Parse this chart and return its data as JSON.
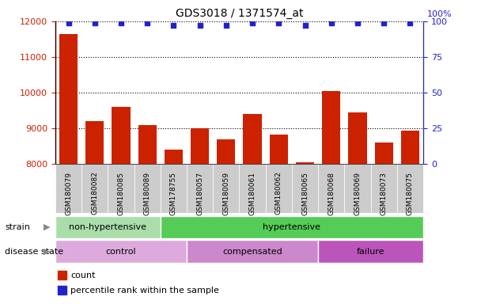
{
  "title": "GDS3018 / 1371574_at",
  "samples": [
    "GSM180079",
    "GSM180082",
    "GSM180085",
    "GSM180089",
    "GSM178755",
    "GSM180057",
    "GSM180059",
    "GSM180061",
    "GSM180062",
    "GSM180065",
    "GSM180068",
    "GSM180069",
    "GSM180073",
    "GSM180075"
  ],
  "counts": [
    11650,
    9200,
    9600,
    9100,
    8400,
    9000,
    8700,
    9400,
    8830,
    8050,
    10050,
    9450,
    8600,
    8930
  ],
  "percentile_ranks": [
    99,
    99,
    99,
    99,
    97,
    97,
    97,
    99,
    99,
    97,
    99,
    99,
    99,
    99
  ],
  "ylim_left": [
    8000,
    12000
  ],
  "ylim_right": [
    0,
    100
  ],
  "yticks_left": [
    8000,
    9000,
    10000,
    11000,
    12000
  ],
  "yticks_right": [
    0,
    25,
    50,
    75,
    100
  ],
  "bar_color": "#cc2200",
  "dot_color": "#2222cc",
  "strain_groups": [
    {
      "label": "non-hypertensive",
      "start": 0,
      "end": 4,
      "color": "#aaddaa"
    },
    {
      "label": "hypertensive",
      "start": 4,
      "end": 14,
      "color": "#55cc55"
    }
  ],
  "disease_groups": [
    {
      "label": "control",
      "start": 0,
      "end": 5,
      "color": "#ddaadd"
    },
    {
      "label": "compensated",
      "start": 5,
      "end": 10,
      "color": "#cc88cc"
    },
    {
      "label": "failure",
      "start": 10,
      "end": 14,
      "color": "#bb55bb"
    }
  ],
  "legend_count_label": "count",
  "legend_pct_label": "percentile rank within the sample",
  "strain_label": "strain",
  "disease_label": "disease state",
  "title_fontsize": 10,
  "axis_color_left": "#cc2200",
  "axis_color_right": "#2222cc",
  "tick_bg_color": "#cccccc",
  "pct_dot_size": 20,
  "bar_width": 0.7
}
